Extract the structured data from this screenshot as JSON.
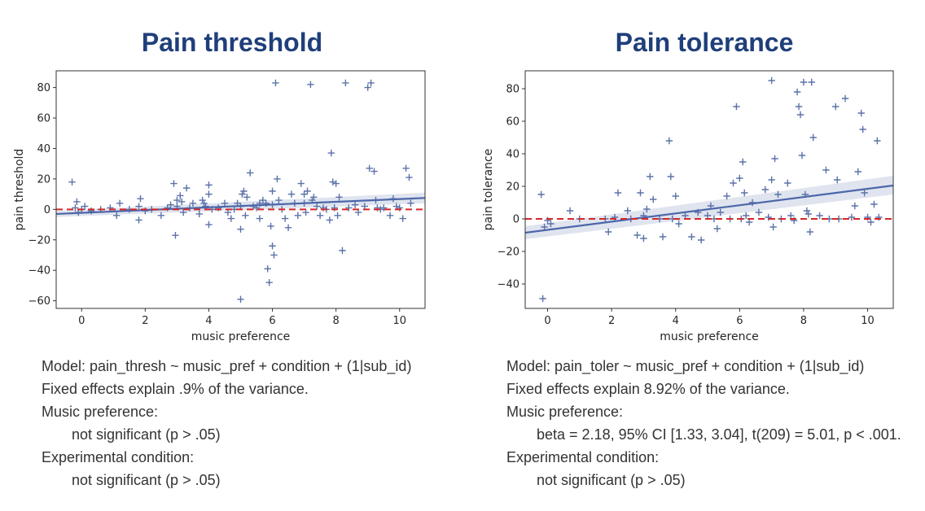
{
  "chart_data": [
    {
      "type": "scatter",
      "title": "Pain threshold",
      "xlabel": "music preference",
      "ylabel": "pain threshold",
      "xlim": [
        -0.8,
        10.8
      ],
      "ylim": [
        -65,
        91
      ],
      "xticks": [
        0,
        2,
        4,
        6,
        8,
        10
      ],
      "yticks": [
        -60,
        -40,
        -20,
        0,
        20,
        40,
        60,
        80
      ],
      "marker_color": "#5b72a8",
      "reference_line": {
        "y": 0,
        "color": "#d62728",
        "style": "dashed"
      },
      "regression": {
        "x": [
          -0.8,
          10.8
        ],
        "y": [
          -3.0,
          7.5
        ],
        "ci_upper": [
          -1.0,
          11.0
        ],
        "ci_lower": [
          -5.0,
          4.0
        ],
        "color": "#4c67a8"
      },
      "points": [
        [
          -0.3,
          18
        ],
        [
          -0.2,
          1
        ],
        [
          -0.15,
          5
        ],
        [
          -0.1,
          -2
        ],
        [
          0.0,
          0
        ],
        [
          0.1,
          2
        ],
        [
          0.3,
          -1
        ],
        [
          0.6,
          0
        ],
        [
          0.9,
          1
        ],
        [
          1.1,
          -4
        ],
        [
          1.2,
          4
        ],
        [
          1.5,
          0
        ],
        [
          1.8,
          -7
        ],
        [
          1.8,
          2
        ],
        [
          1.85,
          7
        ],
        [
          2.0,
          -1
        ],
        [
          2.2,
          0
        ],
        [
          2.5,
          -4
        ],
        [
          2.7,
          1
        ],
        [
          2.8,
          3
        ],
        [
          2.9,
          17
        ],
        [
          2.95,
          -17
        ],
        [
          3.0,
          6
        ],
        [
          3.0,
          2
        ],
        [
          3.1,
          9
        ],
        [
          3.15,
          5
        ],
        [
          3.2,
          -2
        ],
        [
          3.3,
          14
        ],
        [
          3.4,
          1
        ],
        [
          3.5,
          4
        ],
        [
          3.7,
          -3
        ],
        [
          3.8,
          6
        ],
        [
          3.85,
          4
        ],
        [
          3.9,
          2
        ],
        [
          4.0,
          16
        ],
        [
          4.0,
          10
        ],
        [
          4.0,
          -10
        ],
        [
          4.1,
          0
        ],
        [
          4.3,
          1
        ],
        [
          4.5,
          4
        ],
        [
          4.6,
          -2
        ],
        [
          4.7,
          -6
        ],
        [
          4.8,
          0
        ],
        [
          4.9,
          4
        ],
        [
          5.0,
          -59
        ],
        [
          5.0,
          -13
        ],
        [
          5.0,
          2
        ],
        [
          5.05,
          10
        ],
        [
          5.1,
          12
        ],
        [
          5.15,
          -4
        ],
        [
          5.2,
          8
        ],
        [
          5.3,
          24
        ],
        [
          5.4,
          2
        ],
        [
          5.5,
          1
        ],
        [
          5.6,
          -6
        ],
        [
          5.6,
          4
        ],
        [
          5.7,
          6
        ],
        [
          5.8,
          4
        ],
        [
          5.85,
          -39
        ],
        [
          5.9,
          -48
        ],
        [
          5.95,
          -11
        ],
        [
          6.0,
          12
        ],
        [
          6.0,
          3
        ],
        [
          6.0,
          -24
        ],
        [
          6.05,
          -30
        ],
        [
          6.1,
          83
        ],
        [
          6.15,
          20
        ],
        [
          6.2,
          6
        ],
        [
          6.3,
          0
        ],
        [
          6.4,
          -6
        ],
        [
          6.5,
          -12
        ],
        [
          6.6,
          10
        ],
        [
          6.7,
          4
        ],
        [
          6.8,
          -4
        ],
        [
          6.9,
          17
        ],
        [
          7.0,
          10
        ],
        [
          7.0,
          4
        ],
        [
          7.05,
          -2
        ],
        [
          7.1,
          12
        ],
        [
          7.2,
          82
        ],
        [
          7.25,
          6
        ],
        [
          7.3,
          8
        ],
        [
          7.4,
          2
        ],
        [
          7.5,
          -4
        ],
        [
          7.6,
          1
        ],
        [
          7.7,
          0
        ],
        [
          7.8,
          -7
        ],
        [
          7.85,
          37
        ],
        [
          7.9,
          18
        ],
        [
          7.95,
          1
        ],
        [
          8.0,
          17
        ],
        [
          8.05,
          -4
        ],
        [
          8.1,
          8
        ],
        [
          8.2,
          -27
        ],
        [
          8.3,
          83
        ],
        [
          8.4,
          1
        ],
        [
          8.6,
          3
        ],
        [
          8.7,
          -2
        ],
        [
          8.9,
          2
        ],
        [
          9.0,
          80
        ],
        [
          9.05,
          27
        ],
        [
          9.1,
          83
        ],
        [
          9.2,
          25
        ],
        [
          9.25,
          6
        ],
        [
          9.3,
          1
        ],
        [
          9.4,
          0
        ],
        [
          9.5,
          1
        ],
        [
          9.7,
          -4
        ],
        [
          9.8,
          7
        ],
        [
          9.9,
          2
        ],
        [
          10.0,
          1
        ],
        [
          10.1,
          -6
        ],
        [
          10.2,
          27
        ],
        [
          10.3,
          21
        ],
        [
          10.35,
          4
        ]
      ]
    },
    {
      "type": "scatter",
      "title": "Pain tolerance",
      "xlabel": "music preference",
      "ylabel": "pain tolerance",
      "xlim": [
        -0.7,
        10.8
      ],
      "ylim": [
        -55,
        91
      ],
      "xticks": [
        0,
        2,
        4,
        6,
        8,
        10
      ],
      "yticks": [
        -40,
        -20,
        0,
        20,
        40,
        60,
        80
      ],
      "marker_color": "#5b72a8",
      "reference_line": {
        "y": 0,
        "color": "#d62728",
        "style": "dashed"
      },
      "regression": {
        "x": [
          -0.7,
          10.8
        ],
        "y": [
          -8.5,
          20.5
        ],
        "ci_upper": [
          -4.5,
          26.5
        ],
        "ci_lower": [
          -12.5,
          15.0
        ],
        "color": "#4c67a8"
      },
      "points": [
        [
          -0.2,
          15
        ],
        [
          -0.15,
          -49
        ],
        [
          -0.1,
          -5
        ],
        [
          0.0,
          -1
        ],
        [
          0.1,
          -3
        ],
        [
          0.7,
          5
        ],
        [
          1.0,
          0
        ],
        [
          1.8,
          0
        ],
        [
          1.9,
          -8
        ],
        [
          2.1,
          1
        ],
        [
          2.2,
          16
        ],
        [
          2.5,
          5
        ],
        [
          2.6,
          0
        ],
        [
          2.8,
          -10
        ],
        [
          2.9,
          16
        ],
        [
          3.0,
          2
        ],
        [
          3.0,
          -12
        ],
        [
          3.1,
          6
        ],
        [
          3.2,
          26
        ],
        [
          3.3,
          12
        ],
        [
          3.5,
          0
        ],
        [
          3.6,
          -11
        ],
        [
          3.8,
          48
        ],
        [
          3.85,
          26
        ],
        [
          3.9,
          0
        ],
        [
          4.0,
          14
        ],
        [
          4.1,
          -3
        ],
        [
          4.3,
          2
        ],
        [
          4.5,
          -11
        ],
        [
          4.7,
          4
        ],
        [
          4.8,
          -13
        ],
        [
          5.0,
          2
        ],
        [
          5.1,
          8
        ],
        [
          5.2,
          0
        ],
        [
          5.3,
          -6
        ],
        [
          5.4,
          4
        ],
        [
          5.6,
          14
        ],
        [
          5.7,
          0
        ],
        [
          5.8,
          22
        ],
        [
          5.9,
          69
        ],
        [
          6.0,
          25
        ],
        [
          6.05,
          0
        ],
        [
          6.1,
          35
        ],
        [
          6.15,
          16
        ],
        [
          6.2,
          2
        ],
        [
          6.3,
          -2
        ],
        [
          6.4,
          10
        ],
        [
          6.6,
          4
        ],
        [
          6.8,
          18
        ],
        [
          6.9,
          1
        ],
        [
          7.0,
          85
        ],
        [
          7.0,
          24
        ],
        [
          7.05,
          -5
        ],
        [
          7.1,
          37
        ],
        [
          7.2,
          15
        ],
        [
          7.3,
          0
        ],
        [
          7.5,
          22
        ],
        [
          7.6,
          2
        ],
        [
          7.7,
          -1
        ],
        [
          7.8,
          78
        ],
        [
          7.85,
          69
        ],
        [
          7.9,
          64
        ],
        [
          7.95,
          39
        ],
        [
          8.0,
          84
        ],
        [
          8.05,
          15
        ],
        [
          8.1,
          5
        ],
        [
          8.15,
          3
        ],
        [
          8.2,
          -8
        ],
        [
          8.25,
          84
        ],
        [
          8.3,
          50
        ],
        [
          8.5,
          2
        ],
        [
          8.7,
          30
        ],
        [
          8.8,
          0
        ],
        [
          9.0,
          69
        ],
        [
          9.05,
          24
        ],
        [
          9.1,
          0
        ],
        [
          9.3,
          74
        ],
        [
          9.5,
          1
        ],
        [
          9.6,
          8
        ],
        [
          9.7,
          29
        ],
        [
          9.8,
          65
        ],
        [
          9.85,
          55
        ],
        [
          9.9,
          16
        ],
        [
          10.0,
          1
        ],
        [
          10.1,
          -2
        ],
        [
          10.2,
          9
        ],
        [
          10.3,
          48
        ],
        [
          10.35,
          1
        ]
      ]
    }
  ],
  "left_notes": {
    "model": "Model: pain_thresh ~ music_pref + condition + (1|sub_id)",
    "variance": "Fixed effects explain .9% of the variance.",
    "music_heading": "Music preference:",
    "music_result": "not significant (p > .05)",
    "condition_heading": "Experimental condition:",
    "condition_result": "not significant (p > .05)"
  },
  "right_notes": {
    "model": "Model: pain_toler ~ music_pref + condition + (1|sub_id)",
    "variance": "Fixed effects explain 8.92% of the variance.",
    "music_heading": "Music preference:",
    "music_result": "beta = 2.18, 95% CI [1.33, 3.04], t(209) = 5.01, p < .001.",
    "condition_heading": "Experimental condition:",
    "condition_result": "not significant (p > .05)"
  }
}
